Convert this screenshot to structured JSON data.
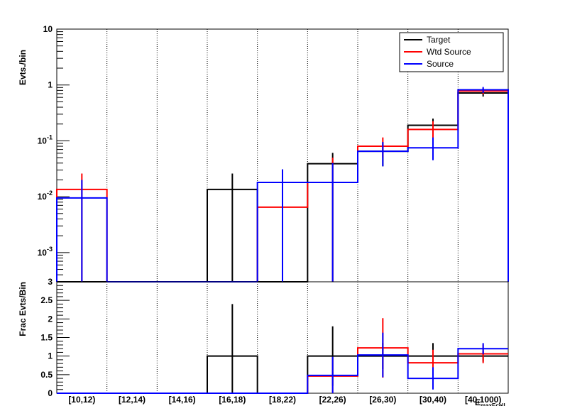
{
  "chart_data": [
    {
      "type": "step-histogram",
      "ylabel": "Evts./bin",
      "yscale": "log",
      "ylim": [
        0.0003,
        10
      ],
      "y_ticks": [
        {
          "v": 10,
          "base": "10",
          "exp": ""
        },
        {
          "v": 1,
          "base": "1",
          "exp": ""
        },
        {
          "v": 0.1,
          "base": "10",
          "exp": "-1"
        },
        {
          "v": 0.01,
          "base": "10",
          "exp": "-2"
        },
        {
          "v": 0.001,
          "base": "10",
          "exp": "-3"
        }
      ],
      "categories": [
        "[10,12)",
        "[12,14)",
        "[14,16)",
        "[16,18)",
        "[18,22)",
        "[22,26)",
        "[26,30)",
        "[30,40)",
        "[40,1000)"
      ],
      "legend": {
        "placement": "top-right",
        "entries": [
          "Target",
          "Wtd Source",
          "Source"
        ]
      },
      "series": [
        {
          "name": "Target",
          "color": "#000000",
          "values": [
            0,
            0,
            0,
            0.0135,
            0,
            0.039,
            0.065,
            0.19,
            0.72
          ],
          "err_lo": [
            0,
            0,
            0,
            0.0135,
            0,
            0.039,
            0.03,
            0.09,
            0.1
          ],
          "err_hi": [
            0,
            0,
            0,
            0.0125,
            0,
            0.022,
            0.03,
            0.06,
            0.1
          ]
        },
        {
          "name": "Wtd Source",
          "color": "#ff0000",
          "values": [
            0.0135,
            0,
            0,
            0,
            0.0065,
            0.018,
            0.08,
            0.16,
            0.78
          ],
          "err_lo": [
            0.0135,
            0,
            0,
            0,
            0.0065,
            0.018,
            0.03,
            0.07,
            0.1
          ],
          "err_hi": [
            0.0125,
            0,
            0,
            0,
            0.012,
            0.032,
            0.035,
            0.065,
            0.1
          ]
        },
        {
          "name": "Source",
          "color": "#0000ff",
          "values": [
            0.0095,
            0,
            0,
            0,
            0.018,
            0.018,
            0.065,
            0.075,
            0.82
          ],
          "err_lo": [
            0.0095,
            0,
            0,
            0,
            0.018,
            0.018,
            0.03,
            0.03,
            0.1
          ],
          "err_hi": [
            0.0105,
            0,
            0,
            0,
            0.013,
            0.022,
            0.03,
            0.04,
            0.1
          ]
        }
      ]
    },
    {
      "type": "step-histogram",
      "ylabel": "Frac Evts/Bin",
      "ylim": [
        0,
        3
      ],
      "y_ticks": [
        "0",
        "0.5",
        "1",
        "1.5",
        "2",
        "2.5",
        "3"
      ],
      "xlabel": "E_maxEcell",
      "categories": [
        "[10,12)",
        "[12,14)",
        "[14,16)",
        "[16,18)",
        "[18,22)",
        "[22,26)",
        "[26,30)",
        "[30,40)",
        "[40,1000)"
      ],
      "series": [
        {
          "name": "Target",
          "color": "#000000",
          "values": [
            0,
            0,
            0,
            1,
            0,
            1,
            1,
            1,
            1
          ],
          "err": [
            0,
            0,
            0,
            1.4,
            0,
            0.8,
            0.35,
            0.35,
            0.15
          ]
        },
        {
          "name": "Wtd Source",
          "color": "#ff0000",
          "values": [
            0,
            0,
            0,
            0,
            0,
            0.46,
            1.22,
            0.82,
            1.06
          ],
          "err": [
            0,
            0,
            0,
            0,
            0,
            0.5,
            0.8,
            0.35,
            0.25
          ]
        },
        {
          "name": "Source",
          "color": "#0000ff",
          "values": [
            0,
            0,
            0,
            0,
            0,
            0.48,
            1.03,
            0.4,
            1.2
          ],
          "err": [
            0,
            0,
            0,
            0,
            0,
            0.5,
            0.6,
            0.3,
            0.15
          ]
        }
      ]
    }
  ]
}
